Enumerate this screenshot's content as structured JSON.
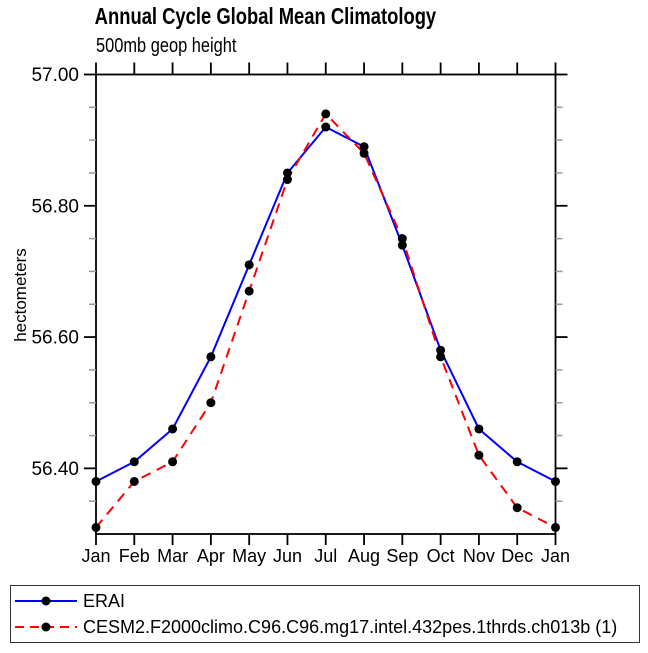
{
  "title": "Annual Cycle Global Mean Climatology",
  "subtitle": "500mb geop height",
  "y_axis": {
    "label": "hectometers",
    "tick_labels": [
      "57.00",
      "56.80",
      "56.60",
      "56.40"
    ]
  },
  "x_axis": {
    "tick_labels": [
      "Jan",
      "Feb",
      "Mar",
      "Apr",
      "May",
      "Jun",
      "Jul",
      "Aug",
      "Sep",
      "Oct",
      "Nov",
      "Dec",
      "Jan"
    ]
  },
  "colors": {
    "erai_line": "#0000ff",
    "cesm2_line": "#ff0000",
    "marker": "#000000",
    "axis": "#000000",
    "minor_tick": "#999999"
  },
  "chart_data": {
    "type": "line",
    "title": "Annual Cycle Global Mean Climatology",
    "subtitle": "500mb geop height",
    "xlabel": "",
    "ylabel": "hectometers",
    "x_categories": [
      "Jan",
      "Feb",
      "Mar",
      "Apr",
      "May",
      "Jun",
      "Jul",
      "Aug",
      "Sep",
      "Oct",
      "Nov",
      "Dec",
      "Jan"
    ],
    "ylim": [
      56.3,
      57.0
    ],
    "y_major_ticks": [
      56.4,
      56.6,
      56.8,
      57.0
    ],
    "y_minor_step": 0.05,
    "grid": false,
    "legend_position": "bottom-left-box",
    "series": [
      {
        "name": "ERAI",
        "color": "#0000ff",
        "line_style": "solid",
        "marker": "filled-circle",
        "marker_color": "#000000",
        "values": [
          56.38,
          56.41,
          56.46,
          56.57,
          56.71,
          56.85,
          56.92,
          56.89,
          56.74,
          56.58,
          56.46,
          56.41,
          56.38
        ]
      },
      {
        "name": "CESM2.F2000climo.C96.C96.mg17.intel.432pes.1thrds.ch013b (1)",
        "color": "#ff0000",
        "line_style": "dashed",
        "marker": "filled-circle",
        "marker_color": "#000000",
        "values": [
          56.31,
          56.38,
          56.41,
          56.5,
          56.67,
          56.84,
          56.94,
          56.88,
          56.75,
          56.57,
          56.42,
          56.34,
          56.31
        ]
      }
    ]
  }
}
